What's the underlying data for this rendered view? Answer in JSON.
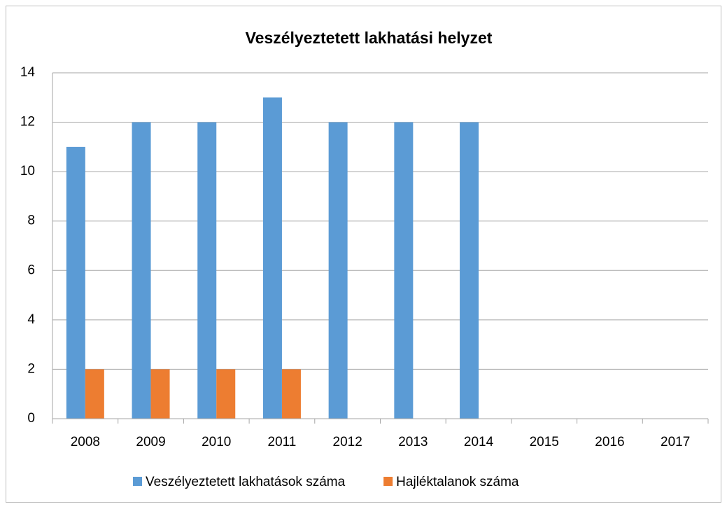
{
  "chart_data": {
    "type": "bar",
    "title": "Veszélyeztetett lakhatási helyzet",
    "categories": [
      "2008",
      "2009",
      "2010",
      "2011",
      "2012",
      "2013",
      "2014",
      "2015",
      "2016",
      "2017"
    ],
    "series": [
      {
        "name": "Veszélyeztetett lakhatások száma",
        "color": "#5b9bd5",
        "values": [
          11,
          12,
          12,
          13,
          12,
          12,
          12,
          null,
          null,
          null
        ]
      },
      {
        "name": "Hajléktalanok száma",
        "color": "#ed7d31",
        "values": [
          2,
          2,
          2,
          2,
          null,
          null,
          null,
          null,
          null,
          null
        ]
      }
    ],
    "ylim": [
      0,
      14
    ],
    "yticks": [
      0,
      2,
      4,
      6,
      8,
      10,
      12,
      14
    ],
    "grid": true,
    "legend": "bottom"
  }
}
